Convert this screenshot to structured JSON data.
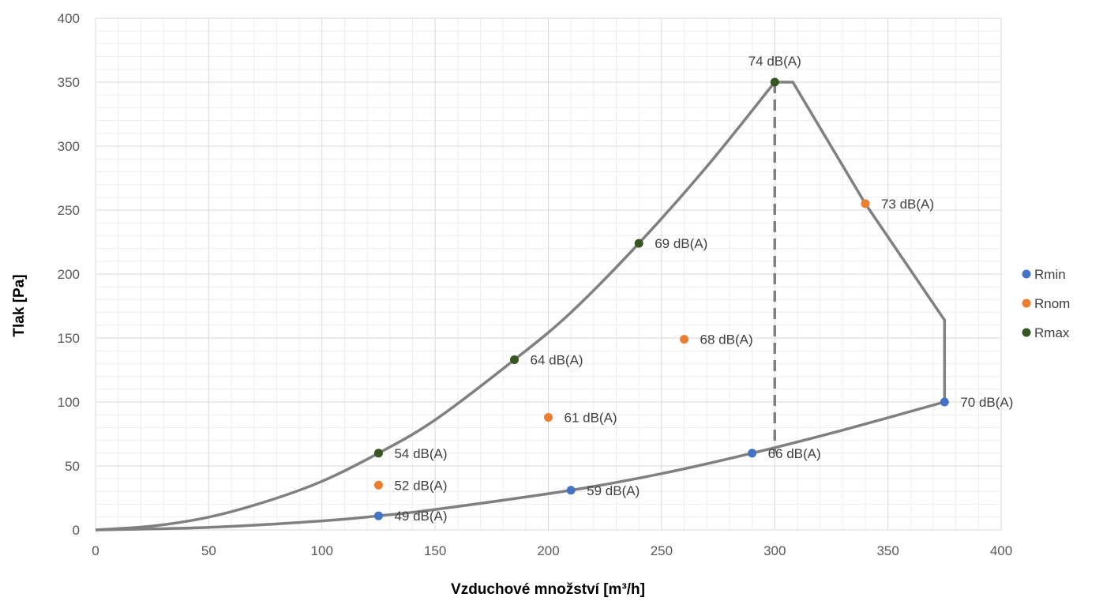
{
  "chart_data": {
    "type": "scatter",
    "title": "",
    "xlabel": "Vzduchové množství [m³/h]",
    "ylabel": "Tlak [Pa]",
    "xlim": [
      0,
      400
    ],
    "ylim": [
      0,
      400
    ],
    "x_ticks": [
      "0",
      "50",
      "100",
      "150",
      "200",
      "250",
      "300",
      "350",
      "400"
    ],
    "y_ticks": [
      "0",
      "50",
      "100",
      "150",
      "200",
      "250",
      "300",
      "350",
      "400"
    ],
    "grid": true,
    "legend_position": "right",
    "series": [
      {
        "name": "Rmin",
        "color": "#4472C4",
        "points": [
          {
            "x": 125,
            "y": 11,
            "label": "49 dB(A)"
          },
          {
            "x": 210,
            "y": 31,
            "label": "59 dB(A)"
          },
          {
            "x": 290,
            "y": 60,
            "label": "66 dB(A)"
          },
          {
            "x": 375,
            "y": 100,
            "label": "70 dB(A)"
          }
        ]
      },
      {
        "name": "Rnom",
        "color": "#ED7D31",
        "points": [
          {
            "x": 125,
            "y": 35,
            "label": "52 dB(A)"
          },
          {
            "x": 200,
            "y": 88,
            "label": "61 dB(A)"
          },
          {
            "x": 260,
            "y": 149,
            "label": "68 dB(A)"
          },
          {
            "x": 340,
            "y": 255,
            "label": "73 dB(A)"
          }
        ]
      },
      {
        "name": "Rmax",
        "color": "#375623",
        "points": [
          {
            "x": 125,
            "y": 60,
            "label": "54 dB(A)"
          },
          {
            "x": 185,
            "y": 133,
            "label": "64 dB(A)"
          },
          {
            "x": 240,
            "y": 224,
            "label": "69 dB(A)"
          },
          {
            "x": 300,
            "y": 350,
            "label": "74 dB(A)"
          }
        ]
      }
    ],
    "curves": {
      "color": "#808080",
      "upper_curve": [
        [
          0,
          0
        ],
        [
          25,
          3
        ],
        [
          50,
          10
        ],
        [
          75,
          22
        ],
        [
          100,
          38
        ],
        [
          125,
          60
        ],
        [
          150,
          86
        ],
        [
          185,
          133
        ],
        [
          210,
          170
        ],
        [
          240,
          224
        ],
        [
          270,
          284
        ],
        [
          300,
          350
        ],
        [
          308,
          350
        ],
        [
          340,
          255
        ],
        [
          375,
          164
        ],
        [
          375,
          100
        ]
      ],
      "lower_curve": [
        [
          0,
          0
        ],
        [
          50,
          2
        ],
        [
          100,
          7
        ],
        [
          125,
          11
        ],
        [
          150,
          16
        ],
        [
          210,
          31
        ],
        [
          250,
          44
        ],
        [
          290,
          60
        ],
        [
          330,
          78
        ],
        [
          375,
          100
        ]
      ],
      "dashed_line": [
        [
          300,
          350
        ],
        [
          300,
          60
        ]
      ]
    }
  }
}
